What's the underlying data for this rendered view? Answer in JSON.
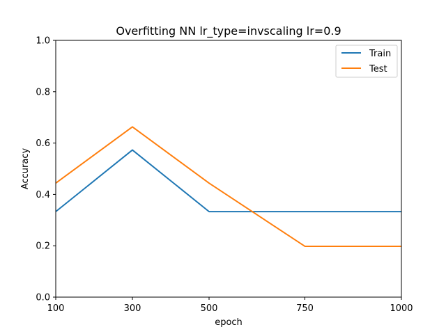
{
  "chart_data": {
    "type": "line",
    "title": "Overfitting NN lr_type=invscaling lr=0.9",
    "xlabel": "epoch",
    "ylabel": "Accuracy",
    "categories": [
      "100",
      "300",
      "500",
      "750",
      "1000"
    ],
    "ylim": [
      0.0,
      1.0
    ],
    "yticks": [
      "0.0",
      "0.2",
      "0.4",
      "0.6",
      "0.8",
      "1.0"
    ],
    "grid": false,
    "legend_position": "top-right",
    "series": [
      {
        "name": "Train",
        "color": "#1f77b4",
        "values": [
          0.333,
          0.573,
          0.333,
          0.333,
          0.333
        ]
      },
      {
        "name": "Test",
        "color": "#ff7f0e",
        "values": [
          0.444,
          0.663,
          0.444,
          0.198,
          0.198
        ]
      }
    ]
  }
}
